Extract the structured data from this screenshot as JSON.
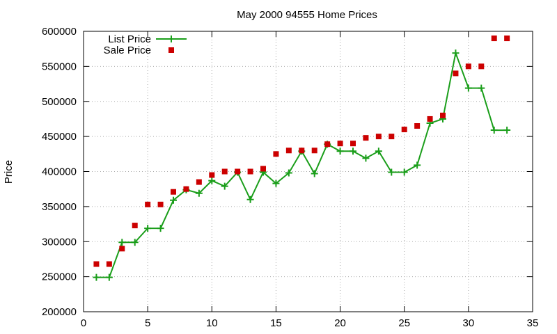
{
  "chart_data": {
    "type": "line",
    "title": "May 2000 94555 Home Prices",
    "xlabel": "",
    "ylabel": "Price",
    "xlim": [
      0,
      35
    ],
    "ylim": [
      200000,
      600000
    ],
    "xticks": [
      0,
      5,
      10,
      15,
      20,
      25,
      30,
      35
    ],
    "yticks": [
      200000,
      250000,
      300000,
      350000,
      400000,
      450000,
      500000,
      550000,
      600000
    ],
    "grid": true,
    "legend_position": "top-left",
    "series": [
      {
        "name": "List Price",
        "style": "line+plus",
        "color": "#1a9e1a",
        "x": [
          1,
          2,
          3,
          4,
          5,
          6,
          7,
          8,
          9,
          10,
          11,
          12,
          13,
          14,
          15,
          16,
          17,
          18,
          19,
          20,
          21,
          22,
          23,
          24,
          25,
          26,
          27,
          28,
          29,
          30,
          31,
          32,
          33
        ],
        "y": [
          249000,
          249000,
          299000,
          299000,
          319000,
          319000,
          359000,
          374000,
          369000,
          387000,
          379000,
          399000,
          360000,
          399000,
          383000,
          398000,
          429000,
          397000,
          439000,
          429000,
          429000,
          419000,
          429000,
          399000,
          399000,
          409000,
          469000,
          475000,
          569000,
          519000,
          519000,
          459000,
          459000
        ]
      },
      {
        "name": "Sale Price",
        "style": "square",
        "color": "#cc0000",
        "x": [
          1,
          2,
          3,
          4,
          5,
          6,
          7,
          8,
          9,
          10,
          11,
          12,
          13,
          14,
          15,
          16,
          17,
          18,
          19,
          20,
          21,
          22,
          23,
          24,
          25,
          26,
          27,
          28,
          29,
          30,
          31,
          32,
          33
        ],
        "y": [
          268000,
          268000,
          290000,
          323000,
          353000,
          353000,
          371000,
          375000,
          385000,
          395000,
          400000,
          400000,
          400000,
          404000,
          425000,
          430000,
          430000,
          430000,
          439000,
          440000,
          440000,
          448000,
          450000,
          450000,
          460000,
          465000,
          475000,
          480000,
          540000,
          550000,
          550000,
          590000,
          590000
        ]
      }
    ]
  }
}
